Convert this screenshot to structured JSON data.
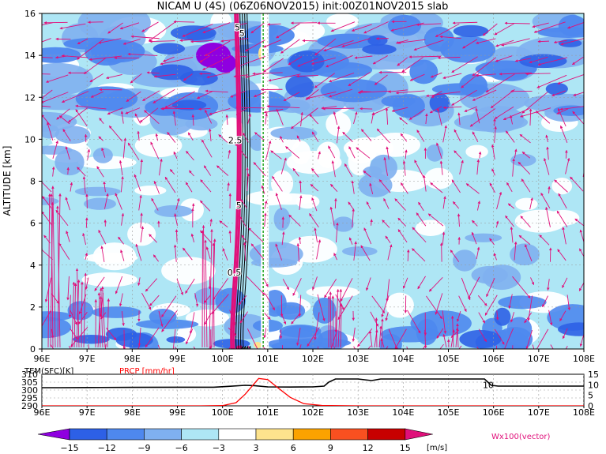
{
  "title": "NICAM U (4S) (06Z06NOV2015) init:00Z01NOV2015 slab",
  "colors": {
    "wind_vector": "#e0107a",
    "precip": "#ff0000",
    "temperature": "#000000",
    "reference_line": "#009900",
    "palette": [
      "#8f00e0",
      "#2d60e6",
      "#4e88ee",
      "#7fb0f0",
      "#aee6f5",
      "#ffffff",
      "#fde38d",
      "#fba200",
      "#f95020",
      "#c80000",
      "#e0107a"
    ]
  },
  "chart_data": [
    {
      "type": "heatmap",
      "title": "NICAM U (4S) (06Z06NOV2015) init:00Z01NOV2015 slab",
      "ylabel": "ALTITUDE [km]",
      "xlim": [
        96,
        108
      ],
      "ylim": [
        0,
        16
      ],
      "x_ticks": [
        "96E",
        "97E",
        "98E",
        "99E",
        "100E",
        "101E",
        "102E",
        "103E",
        "104E",
        "105E",
        "106E",
        "107E",
        "108E"
      ],
      "y_ticks": [
        "0",
        "2",
        "4",
        "6",
        "8",
        "10",
        "12",
        "14",
        "16"
      ],
      "grid": true,
      "contour_labels": [
        {
          "text": "5",
          "lon": 100.33,
          "alt": 15.2
        },
        {
          "text": "5",
          "lon": 100.43,
          "alt": 14.9
        },
        {
          "text": "2.5",
          "lon": 100.28,
          "alt": 9.8
        },
        {
          "text": "5",
          "lon": 100.36,
          "alt": 6.7
        },
        {
          "text": "0.5",
          "lon": 100.26,
          "alt": 3.5
        }
      ],
      "reference_line_lon": 100.9,
      "vector_legend": "Wx100(vector)",
      "colorbar": {
        "unit": "[m/s]",
        "ticks": [
          "−15",
          "−12",
          "−9",
          "−6",
          "−3",
          "3",
          "6",
          "9",
          "12",
          "15"
        ],
        "levels": [
          -15,
          -12,
          -9,
          -6,
          -3,
          3,
          6,
          9,
          12,
          15
        ]
      }
    },
    {
      "type": "line",
      "xlim": [
        96,
        108
      ],
      "x_ticks": [
        "96E",
        "97E",
        "98E",
        "99E",
        "100E",
        "101E",
        "102E",
        "103E",
        "104E",
        "105E",
        "106E",
        "107E",
        "108E"
      ],
      "left_axis": {
        "label": "TEM(SFC)[K]",
        "ticks": [
          "310",
          "305",
          "300",
          "295",
          "290"
        ],
        "range": [
          290,
          310
        ]
      },
      "right_axis": {
        "label": "PRCP [mm/hr]",
        "ticks": [
          "15",
          "10",
          "5",
          "0"
        ],
        "range": [
          0,
          15
        ]
      },
      "series": [
        {
          "name": "TEM(SFC)[K]",
          "x": [
            96,
            96.4,
            97,
            98,
            99,
            99.8,
            100.1,
            100.5,
            100.7,
            101,
            101.5,
            102,
            102.25,
            102.35,
            102.5,
            103,
            103.3,
            103.5,
            104,
            105,
            105.8,
            105.95,
            106.1,
            106.5,
            107,
            108
          ],
          "y": [
            301.5,
            301.5,
            301.6,
            301.7,
            301.8,
            301.8,
            302.3,
            303,
            302.8,
            302,
            301.9,
            302,
            302.5,
            305,
            307,
            307,
            306,
            307,
            307,
            307,
            307,
            303,
            302.5,
            302.5,
            302.5,
            302.5
          ]
        },
        {
          "name": "PRCP [mm/hr]",
          "x": [
            96,
            99.5,
            100,
            100.3,
            100.5,
            100.8,
            101,
            101.2,
            101.5,
            101.8,
            102.2,
            103,
            108
          ],
          "y": [
            0,
            0,
            0.1,
            1.5,
            5.5,
            13,
            12.5,
            9,
            4,
            1,
            0.2,
            0,
            0
          ]
        }
      ],
      "annotations": [
        {
          "text": "10",
          "lon": 105.9,
          "value": 10
        }
      ]
    }
  ]
}
